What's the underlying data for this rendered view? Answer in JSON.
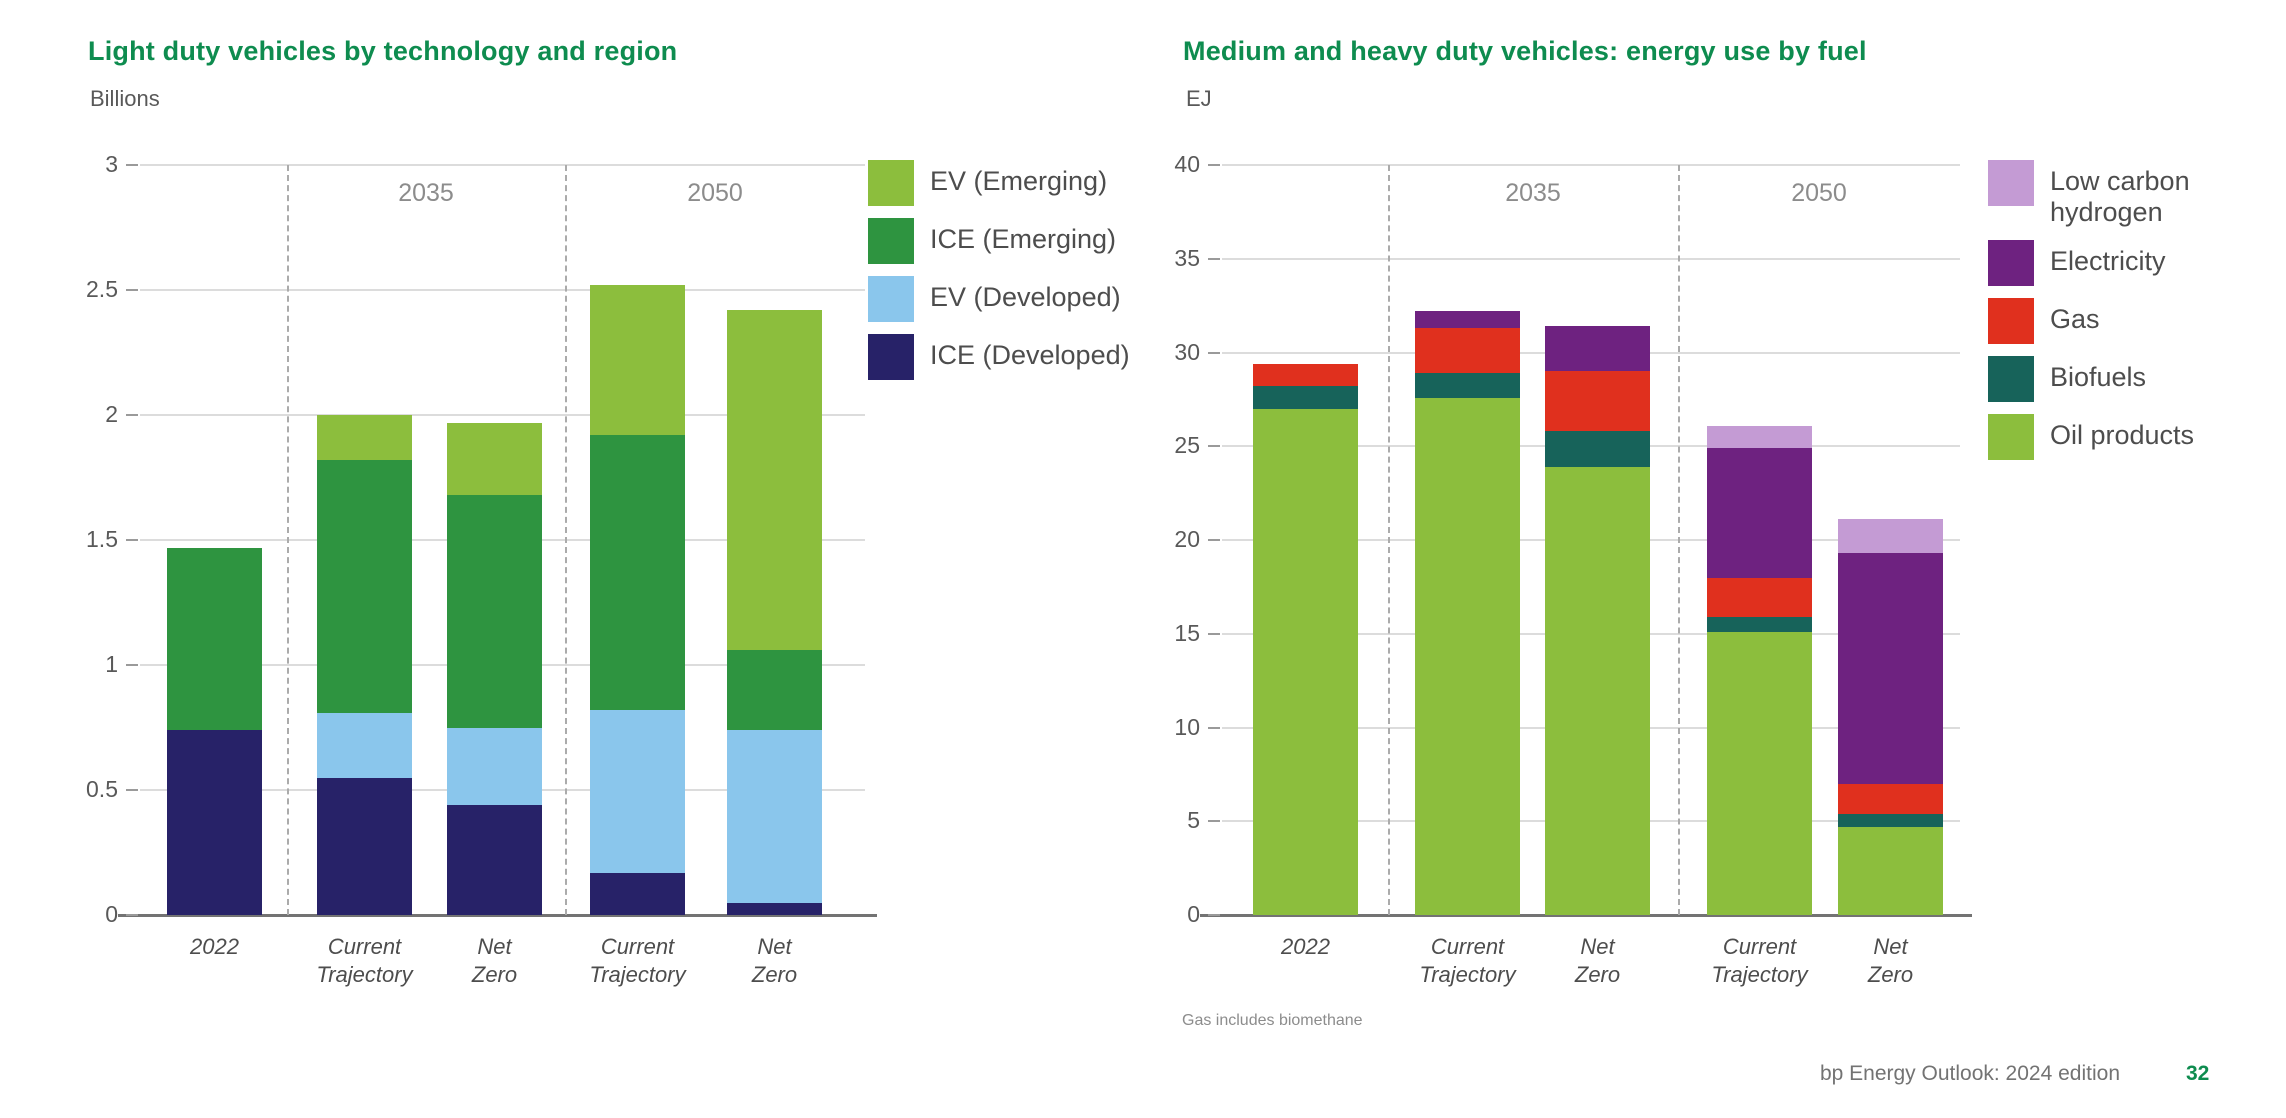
{
  "chart_data": [
    {
      "type": "bar",
      "stacked": true,
      "title": "Light duty vehicles by technology and region",
      "ylabel": "Billions",
      "xlabel": "",
      "ylim": [
        0,
        3
      ],
      "yticks": [
        0,
        0.5,
        1,
        1.5,
        2,
        2.5,
        3
      ],
      "grid": true,
      "legend_position": "right",
      "categories": [
        "2022",
        "Current Trajectory",
        "Net Zero",
        "Current Trajectory",
        "Net Zero"
      ],
      "group_labels": [
        "2035",
        "2050"
      ],
      "series": [
        {
          "name": "ICE (Developed)",
          "color": "#272268",
          "values": [
            0.74,
            0.55,
            0.44,
            0.17,
            0.05
          ]
        },
        {
          "name": "EV (Developed)",
          "color": "#8AC6EC",
          "values": [
            0.0,
            0.26,
            0.31,
            0.65,
            0.69
          ]
        },
        {
          "name": "ICE (Emerging)",
          "color": "#2E9440",
          "values": [
            0.73,
            1.01,
            0.93,
            1.1,
            0.32
          ]
        },
        {
          "name": "EV (Emerging)",
          "color": "#8CBE3D",
          "values": [
            0.0,
            0.18,
            0.29,
            0.6,
            1.36
          ]
        }
      ],
      "legend": [
        {
          "label": "EV (Emerging)",
          "color": "#8CBE3D"
        },
        {
          "label": "ICE (Emerging)",
          "color": "#2E9440"
        },
        {
          "label": "EV (Developed)",
          "color": "#8AC6EC"
        },
        {
          "label": "ICE (Developed)",
          "color": "#272268"
        }
      ]
    },
    {
      "type": "bar",
      "stacked": true,
      "title": "Medium and heavy duty vehicles: energy use by fuel",
      "ylabel": "EJ",
      "xlabel": "",
      "ylim": [
        0,
        40
      ],
      "yticks": [
        0,
        5,
        10,
        15,
        20,
        25,
        30,
        35,
        40
      ],
      "grid": true,
      "legend_position": "right",
      "footnote": "Gas includes biomethane",
      "categories": [
        "2022",
        "Current Trajectory",
        "Net Zero",
        "Current Trajectory",
        "Net Zero"
      ],
      "group_labels": [
        "2035",
        "2050"
      ],
      "series": [
        {
          "name": "Oil products",
          "color": "#8CBE3D",
          "values": [
            27.0,
            27.6,
            23.9,
            15.1,
            4.7
          ]
        },
        {
          "name": "Biofuels",
          "color": "#17635A",
          "values": [
            1.2,
            1.3,
            1.9,
            0.8,
            0.7
          ]
        },
        {
          "name": "Gas",
          "color": "#E0301E",
          "values": [
            1.2,
            2.4,
            3.2,
            2.1,
            1.6
          ]
        },
        {
          "name": "Electricity",
          "color": "#6E2280",
          "values": [
            0.0,
            0.9,
            2.4,
            6.9,
            12.3
          ]
        },
        {
          "name": "Low carbon hydrogen",
          "color": "#C49BD4",
          "values": [
            0.0,
            0.0,
            0.0,
            1.2,
            1.8
          ]
        }
      ],
      "legend": [
        {
          "label": "Low carbon hydrogen",
          "color": "#C49BD4"
        },
        {
          "label": "Electricity",
          "color": "#6E2280"
        },
        {
          "label": "Gas",
          "color": "#E0301E"
        },
        {
          "label": "Biofuels",
          "color": "#17635A"
        },
        {
          "label": "Oil products",
          "color": "#8CBE3D"
        }
      ]
    }
  ],
  "footer": {
    "source": "bp Energy Outlook: 2024 edition",
    "page": "32"
  }
}
